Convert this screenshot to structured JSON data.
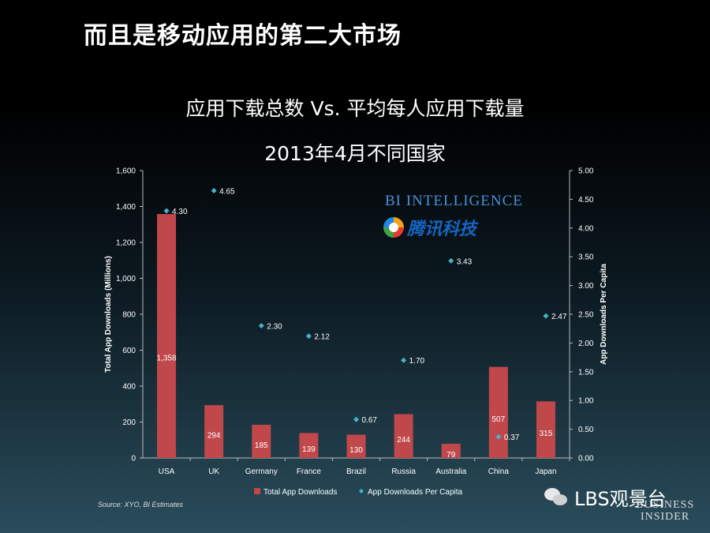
{
  "slide_title": "而且是移动应用的第二大市场",
  "chart_data": {
    "type": "bar",
    "title": "应用下载总数 Vs. 平均每人应用下载量",
    "subtitle": "2013年4月不同国家",
    "categories": [
      "USA",
      "UK",
      "Germany",
      "France",
      "Brazil",
      "Russia",
      "Australia",
      "China",
      "Japan"
    ],
    "series": [
      {
        "name": "Total App Downloads",
        "type": "bar",
        "axis": "left",
        "values": [
          1358,
          294,
          185,
          139,
          130,
          244,
          79,
          507,
          315
        ],
        "labels": [
          "1,358",
          "294",
          "185",
          "139",
          "130",
          "244",
          "79",
          "507",
          "315"
        ]
      },
      {
        "name": "App Downloads Per Capita",
        "type": "scatter",
        "axis": "right",
        "values": [
          4.3,
          4.65,
          2.3,
          2.12,
          0.67,
          1.7,
          3.43,
          0.37,
          2.47
        ],
        "labels": [
          "4.30",
          "4.65",
          "2.30",
          "2.12",
          "0.67",
          "1.70",
          "3.43",
          "0.37",
          "2.47"
        ]
      }
    ],
    "ylabel": "Total App Downloads (Millions)",
    "ylim": [
      0,
      1600
    ],
    "yticks": [
      "0",
      "200",
      "400",
      "600",
      "800",
      "1,000",
      "1,200",
      "1,400",
      "1,600"
    ],
    "y2label": "App Downloads Per Capita",
    "y2lim": [
      0,
      5
    ],
    "y2ticks": [
      "0.00",
      "0.50",
      "1.00",
      "1.50",
      "2.00",
      "2.50",
      "3.00",
      "3.50",
      "4.00",
      "4.50",
      "5.00"
    ],
    "grid": false,
    "legend": "bottom-center",
    "source": "Source: XYO, BI Estimates",
    "colors": {
      "bar": "#c0474a",
      "point": "#45b3c9"
    }
  },
  "logos": {
    "bi_intelligence": "BI INTELLIGENCE",
    "tencent": "腾讯科技",
    "tencent_icon": "tencent-logo-icon",
    "wechat": "LBS观景台",
    "wechat_icon": "wechat-icon",
    "business_insider_line1": "BUSINESS",
    "business_insider_line2": "INSIDER"
  }
}
